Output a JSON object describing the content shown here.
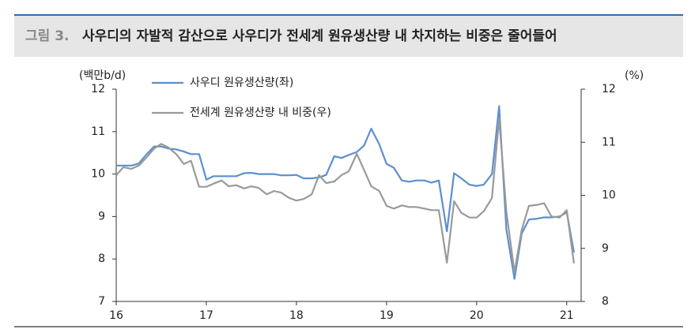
{
  "chart_data": {
    "type": "line",
    "figure_label": "그림 3.",
    "title": "사우디의 자발적 감산으로 사우디가 전세계 원유생산량 내 차지하는 비중은 줄어들어",
    "y_label": "(백만b/d)",
    "y2_label": "(%)",
    "x": [
      16.0,
      16.08,
      16.17,
      16.25,
      16.33,
      16.42,
      16.5,
      16.58,
      16.67,
      16.75,
      16.83,
      16.92,
      17.0,
      17.08,
      17.17,
      17.25,
      17.33,
      17.42,
      17.5,
      17.58,
      17.67,
      17.75,
      17.83,
      17.92,
      18.0,
      18.08,
      18.17,
      18.25,
      18.33,
      18.42,
      18.5,
      18.58,
      18.67,
      18.75,
      18.83,
      18.92,
      19.0,
      19.08,
      19.17,
      19.25,
      19.33,
      19.42,
      19.5,
      19.58,
      19.67,
      19.75,
      19.83,
      19.92,
      20.0,
      20.08,
      20.17,
      20.25,
      20.33,
      20.42,
      20.5,
      20.58,
      20.67,
      20.75,
      20.83,
      20.92,
      21.0,
      21.08
    ],
    "xlim": [
      16,
      21.16
    ],
    "xticks": [
      16,
      17,
      18,
      19,
      20,
      21
    ],
    "ylim": [
      7,
      12
    ],
    "yticks": [
      7,
      8,
      9,
      10,
      11,
      12
    ],
    "y2lim": [
      8,
      12
    ],
    "y2ticks": [
      8,
      9,
      10,
      11,
      12
    ],
    "series": [
      {
        "name": "사우디 원유생산량(좌)",
        "color": "#5b8fd0",
        "values": [
          10.2,
          10.2,
          10.2,
          10.25,
          10.45,
          10.65,
          10.65,
          10.6,
          10.58,
          10.53,
          10.47,
          10.47,
          9.87,
          9.95,
          9.95,
          9.95,
          9.95,
          10.02,
          10.03,
          10.0,
          10.0,
          10.0,
          9.97,
          9.97,
          9.98,
          9.9,
          9.9,
          9.92,
          9.98,
          10.42,
          10.38,
          10.45,
          10.52,
          10.67,
          11.07,
          10.7,
          10.24,
          10.15,
          9.85,
          9.82,
          9.85,
          9.85,
          9.8,
          9.85,
          8.65,
          10.02,
          9.9,
          9.75,
          9.72,
          9.75,
          10.0,
          11.6,
          8.7,
          7.53,
          8.6,
          8.93,
          8.95,
          8.98,
          8.98,
          9.0,
          9.1,
          8.15
        ]
      },
      {
        "name": "전세계 원유생산량 내 비중(우)",
        "color": "#9a9a9a",
        "axis": "y2",
        "values": [
          10.38,
          10.53,
          10.5,
          10.56,
          10.7,
          10.88,
          10.97,
          10.9,
          10.77,
          10.59,
          10.65,
          10.16,
          10.16,
          10.22,
          10.28,
          10.17,
          10.19,
          10.13,
          10.17,
          10.14,
          10.02,
          10.08,
          10.05,
          9.95,
          9.9,
          9.93,
          10.02,
          10.38,
          10.23,
          10.26,
          10.38,
          10.45,
          10.78,
          10.48,
          10.17,
          10.08,
          9.8,
          9.75,
          9.81,
          9.78,
          9.78,
          9.75,
          9.72,
          9.72,
          8.73,
          9.89,
          9.67,
          9.58,
          9.58,
          9.7,
          9.95,
          11.45,
          9.7,
          8.55,
          9.35,
          9.8,
          9.82,
          9.85,
          9.6,
          9.58,
          9.72,
          8.72
        ]
      }
    ]
  }
}
